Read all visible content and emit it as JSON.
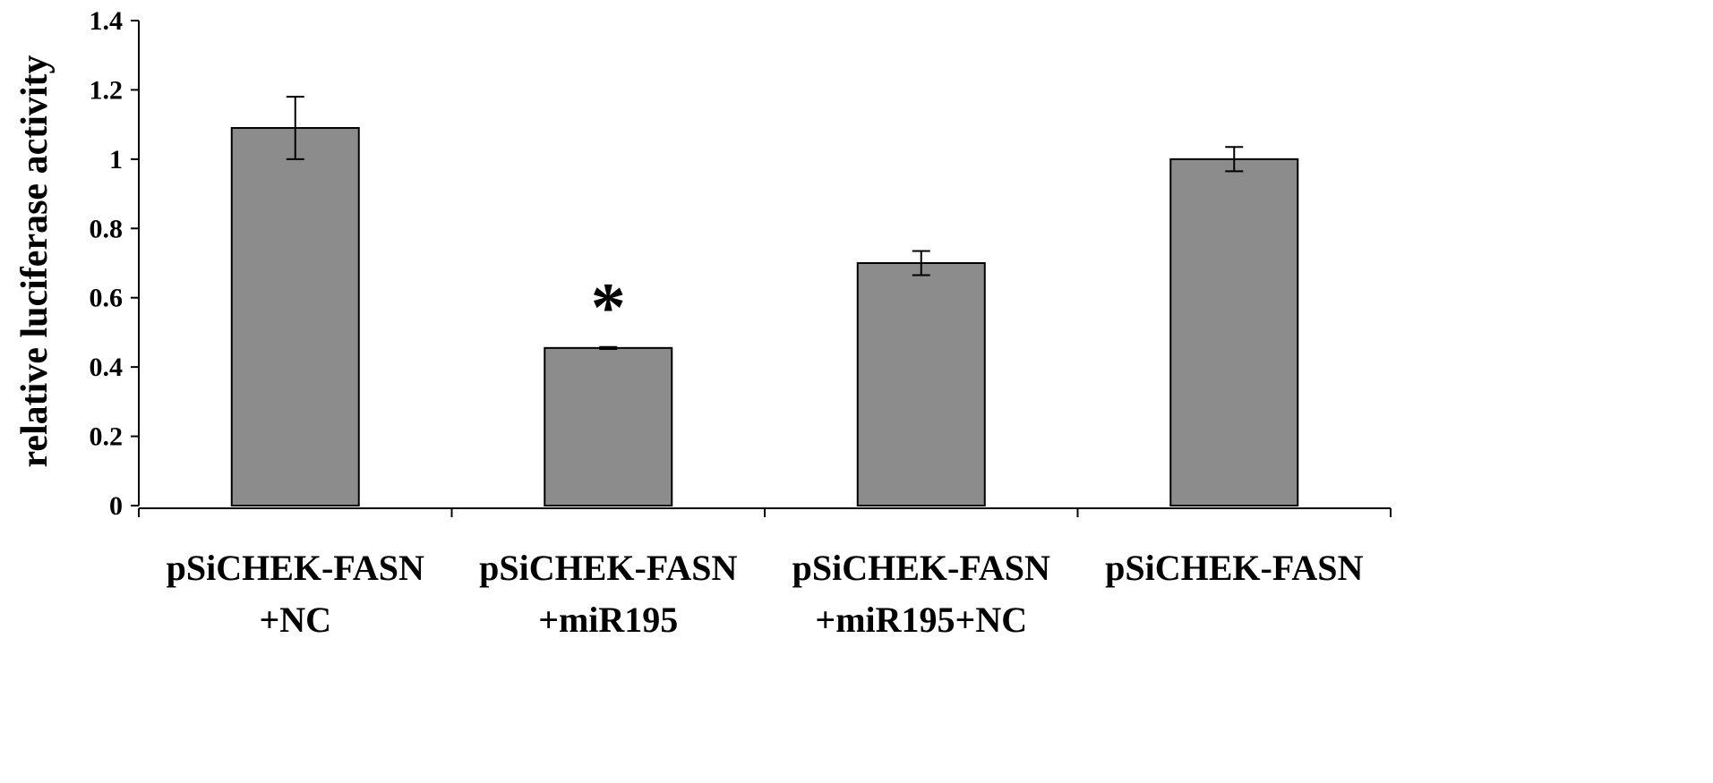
{
  "chart_data": {
    "type": "bar",
    "ylabel": "relative luciferase activity",
    "xlabel": "",
    "ylim": [
      0,
      1.4
    ],
    "yticks": [
      "0",
      "0.2",
      "0.4",
      "0.6",
      "0.8",
      "1",
      "1.2",
      "1.4"
    ],
    "categories": [
      [
        "pSiCHEK-FASN",
        "+NC"
      ],
      [
        "pSiCHEK-FASN",
        "+miR195"
      ],
      [
        "pSiCHEK-FASN",
        "+miR195+NC"
      ],
      [
        "pSiCHEK-FASN",
        ""
      ]
    ],
    "values": [
      1.09,
      0.455,
      0.7,
      1.0
    ],
    "errors": [
      0.09,
      0.003,
      0.035,
      0.035
    ],
    "annotations": [
      {
        "category_index": 1,
        "text": "*"
      }
    ],
    "grid": false,
    "legend": "none",
    "bar_color": "#8c8c8c",
    "bar_edge_color": "#000000"
  }
}
